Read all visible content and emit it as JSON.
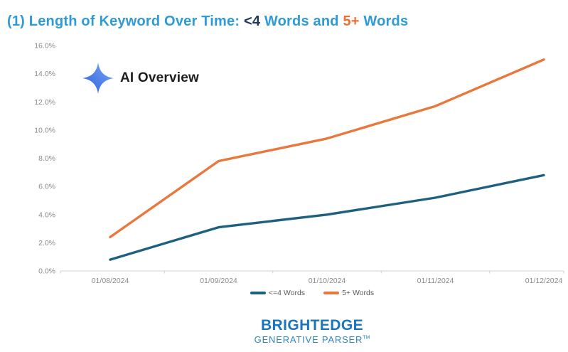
{
  "title": {
    "prefix": "(1) Length of Keyword Over Time: ",
    "short_kw": "<4",
    "mid": " Words and ",
    "long_kw": "5+",
    "suffix": " Words"
  },
  "overlay": {
    "label": "AI Overview"
  },
  "chart_data": {
    "type": "line",
    "title": "(1) Length of Keyword Over Time: <4 Words and 5+ Words",
    "categories": [
      "01/08/2024",
      "01/09/2024",
      "01/10/2024",
      "01/11/2024",
      "01/12/2024"
    ],
    "series": [
      {
        "name": "<=4 Words",
        "color": "#1F6080",
        "values": [
          0.8,
          3.1,
          4.0,
          5.2,
          6.8
        ]
      },
      {
        "name": "5+ Words",
        "color": "#E8783C",
        "values": [
          2.4,
          7.8,
          9.4,
          11.7,
          15.0
        ]
      },
      {
        "name": "",
        "color": "",
        "values": []
      }
    ],
    "xlabel": "",
    "ylabel": "",
    "ylim": [
      0,
      16
    ],
    "ytick_step": 2,
    "ytick_suffix": "%",
    "grid": false,
    "legend_position": "bottom-center",
    "axis_label_color": "#8A8A8A",
    "axis_line_color": "#D9D9D9"
  },
  "footer": {
    "brand": "BRIGHTEDGE",
    "sub": "GENERATIVE PARSER",
    "tm": "TM"
  },
  "colors": {
    "title_blue": "#2E9BD8",
    "keyword_navy": "#1F3A5F",
    "keyword_orange": "#E97132",
    "text_dark": "#1E1E1E",
    "brand_blue": "#1B75BC",
    "brand_blue_light": "#2D87C4",
    "star_light": "#7BA7F9",
    "star_dark": "#2B5FD9"
  }
}
